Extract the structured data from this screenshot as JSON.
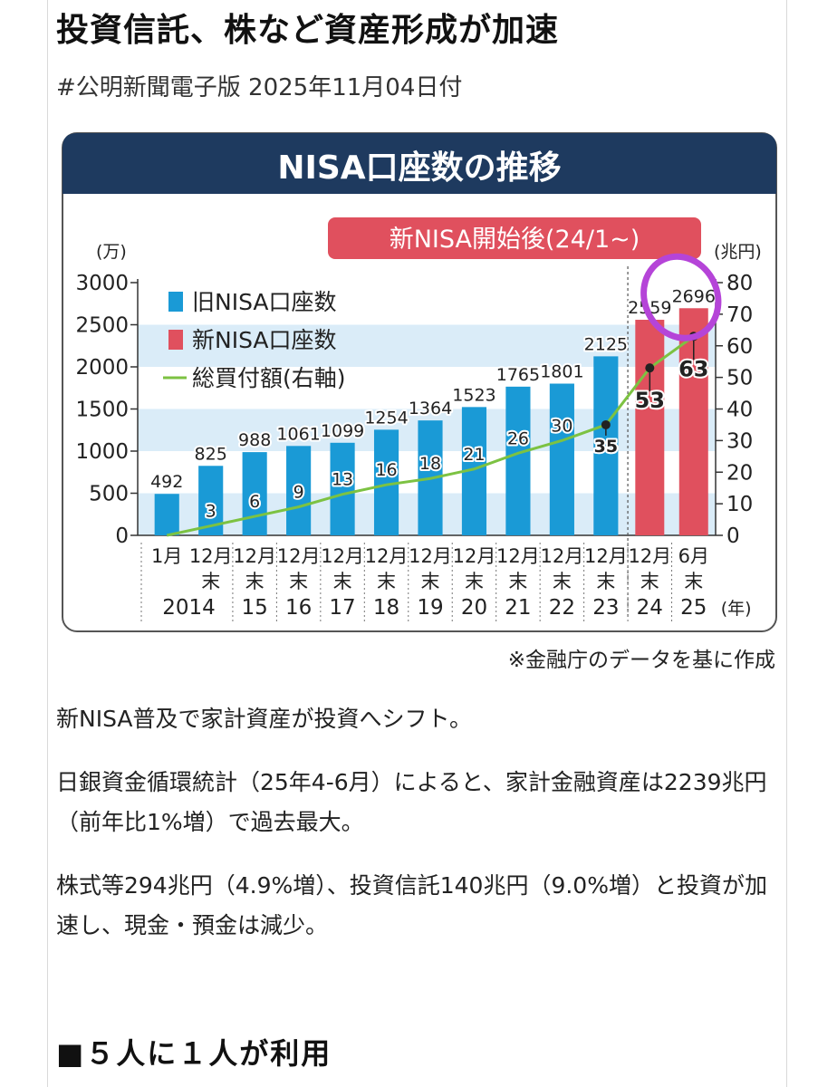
{
  "article": {
    "headline": "投資信託、株など資産形成が加速",
    "source": "#公明新聞電子版 2025年11月04日付",
    "paragraphs": [
      "新NISA普及で家計資産が投資へシフト。",
      "日銀資金循環統計（25年4-6月）によると、家計金融資産は2239兆円（前年比1%増）で過去最大。",
      "株式等294兆円（4.9%増）、投資信託140兆円（9.0%増）と投資が加速し、現金・預金は減少。"
    ],
    "section_heading": "■５人に１人が利用"
  },
  "chart_data": {
    "type": "bar",
    "title": "NISA口座数の推移",
    "annotation": "新NISA開始後(24/1~)",
    "footnote": "※金融庁のデータを基に作成",
    "left_unit": "(万)",
    "right_unit": "(兆円)",
    "year_unit": "(年)",
    "ylim_left": [
      0,
      3000
    ],
    "ylim_right": [
      0,
      80
    ],
    "yticks_left": [
      0,
      500,
      1000,
      1500,
      2000,
      2500,
      3000
    ],
    "yticks_right": [
      0,
      10,
      20,
      30,
      40,
      50,
      60,
      70,
      80
    ],
    "categories": [
      {
        "month": "1月",
        "end": "",
        "year": "2014"
      },
      {
        "month": "12月",
        "end": "末",
        "year": ""
      },
      {
        "month": "12月",
        "end": "末",
        "year": "15"
      },
      {
        "month": "12月",
        "end": "末",
        "year": "16"
      },
      {
        "month": "12月",
        "end": "末",
        "year": "17"
      },
      {
        "month": "12月",
        "end": "末",
        "year": "18"
      },
      {
        "month": "12月",
        "end": "末",
        "year": "19"
      },
      {
        "month": "12月",
        "end": "末",
        "year": "20"
      },
      {
        "month": "12月",
        "end": "末",
        "year": "21"
      },
      {
        "month": "12月",
        "end": "末",
        "year": "22"
      },
      {
        "month": "12月",
        "end": "末",
        "year": "23"
      },
      {
        "month": "12月",
        "end": "末",
        "year": "24"
      },
      {
        "month": "6月",
        "end": "末",
        "year": "25"
      }
    ],
    "series": [
      {
        "name": "旧NISA口座数",
        "color": "#1a9ad6",
        "values": [
          492,
          825,
          988,
          1061,
          1099,
          1254,
          1364,
          1523,
          1765,
          1801,
          2125,
          null,
          null
        ]
      },
      {
        "name": "新NISA口座数",
        "color": "#e0505e",
        "values": [
          null,
          null,
          null,
          null,
          null,
          null,
          null,
          null,
          null,
          null,
          null,
          2559,
          2696
        ]
      },
      {
        "name": "総買付額(右軸)",
        "color": "#7cc242",
        "axis": "right",
        "values": [
          0,
          3,
          6,
          9,
          13,
          16,
          18,
          21,
          26,
          30,
          35,
          53,
          63
        ]
      }
    ],
    "line_labels_shown": [
      null,
      "3",
      "6",
      "9",
      "13",
      "16",
      "18",
      "21",
      "26",
      "30",
      "35",
      "53",
      "63"
    ],
    "colors": {
      "header_bg": "#1e3a5f",
      "annotation_bg": "#e0505e",
      "highlight_circle": "#b544d8",
      "band": "#daecf8"
    }
  }
}
